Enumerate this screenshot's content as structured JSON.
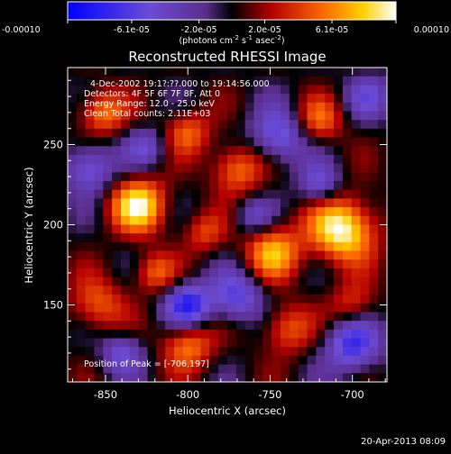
{
  "chart_data": {
    "type": "heatmap",
    "title": "Reconstructed RHESSI Image",
    "xlabel": "Heliocentric X (arcsec)",
    "ylabel": "Heliocentric Y (arcsec)",
    "xlim": [
      -873,
      -679
    ],
    "ylim": [
      102,
      298
    ],
    "x_ticks": [
      -850,
      -800,
      -750,
      -700
    ],
    "y_ticks": [
      150,
      200,
      250
    ],
    "colorbar": {
      "label_prefix": "(photons cm",
      "label_exp1": "-2",
      "label_mid1": " s",
      "label_exp2": "-1",
      "label_mid2": " asec",
      "label_exp3": "-2",
      "label_suffix": ")",
      "ticks": [
        "-0.00010",
        "-6.1e-05",
        "-2.0e-05",
        "2.0e-05",
        "6.1e-05",
        "0.00010"
      ],
      "range": [
        -0.0001,
        0.0001
      ]
    },
    "annotations": {
      "time_range": "4-Dec-2002 19:1?:??.000 to 19:14:56.000",
      "detectors": "Detectors: 4F 5F 6F 7F 8F, Att 0",
      "energy": "Energy Range: 12.0 - 25.0 keV",
      "clean": "Clean    Total counts: 2.11E+03",
      "peak": "Position of Peak = [-706,197]"
    },
    "peak": [
      -706,
      197
    ],
    "blobs": [
      {
        "x": -706,
        "y": 197,
        "a": 0.0001,
        "s": 14
      },
      {
        "x": -830,
        "y": 212,
        "a": 9e-05,
        "s": 12
      },
      {
        "x": -748,
        "y": 183,
        "a": 7e-05,
        "s": 12
      },
      {
        "x": -770,
        "y": 235,
        "a": 6e-05,
        "s": 11
      },
      {
        "x": -800,
        "y": 258,
        "a": 5e-05,
        "s": 10
      },
      {
        "x": -852,
        "y": 270,
        "a": 6e-05,
        "s": 10
      },
      {
        "x": -720,
        "y": 265,
        "a": 5e-05,
        "s": 10
      },
      {
        "x": -855,
        "y": 150,
        "a": 5e-05,
        "s": 12
      },
      {
        "x": -800,
        "y": 125,
        "a": 6e-05,
        "s": 11
      },
      {
        "x": -740,
        "y": 135,
        "a": 5e-05,
        "s": 11
      },
      {
        "x": -790,
        "y": 195,
        "a": 4e-05,
        "s": 9
      },
      {
        "x": -820,
        "y": 170,
        "a": 5e-05,
        "s": 9
      },
      {
        "x": -700,
        "y": 150,
        "a": 4e-05,
        "s": 10
      },
      {
        "x": -800,
        "y": 150,
        "a": -8e-05,
        "s": 10
      },
      {
        "x": -860,
        "y": 235,
        "a": -6e-05,
        "s": 11
      },
      {
        "x": -745,
        "y": 255,
        "a": -6e-05,
        "s": 12
      },
      {
        "x": -720,
        "y": 225,
        "a": -5e-05,
        "s": 9
      },
      {
        "x": -770,
        "y": 155,
        "a": -6e-05,
        "s": 11
      },
      {
        "x": -700,
        "y": 125,
        "a": -7e-05,
        "s": 12
      },
      {
        "x": -840,
        "y": 120,
        "a": -5e-05,
        "s": 9
      },
      {
        "x": -825,
        "y": 248,
        "a": -4e-05,
        "s": 9
      },
      {
        "x": -760,
        "y": 205,
        "a": -4e-05,
        "s": 8
      },
      {
        "x": -690,
        "y": 280,
        "a": -4e-05,
        "s": 10
      }
    ]
  },
  "footer": {
    "timestamp": "20-Apr-2013 08:09"
  }
}
